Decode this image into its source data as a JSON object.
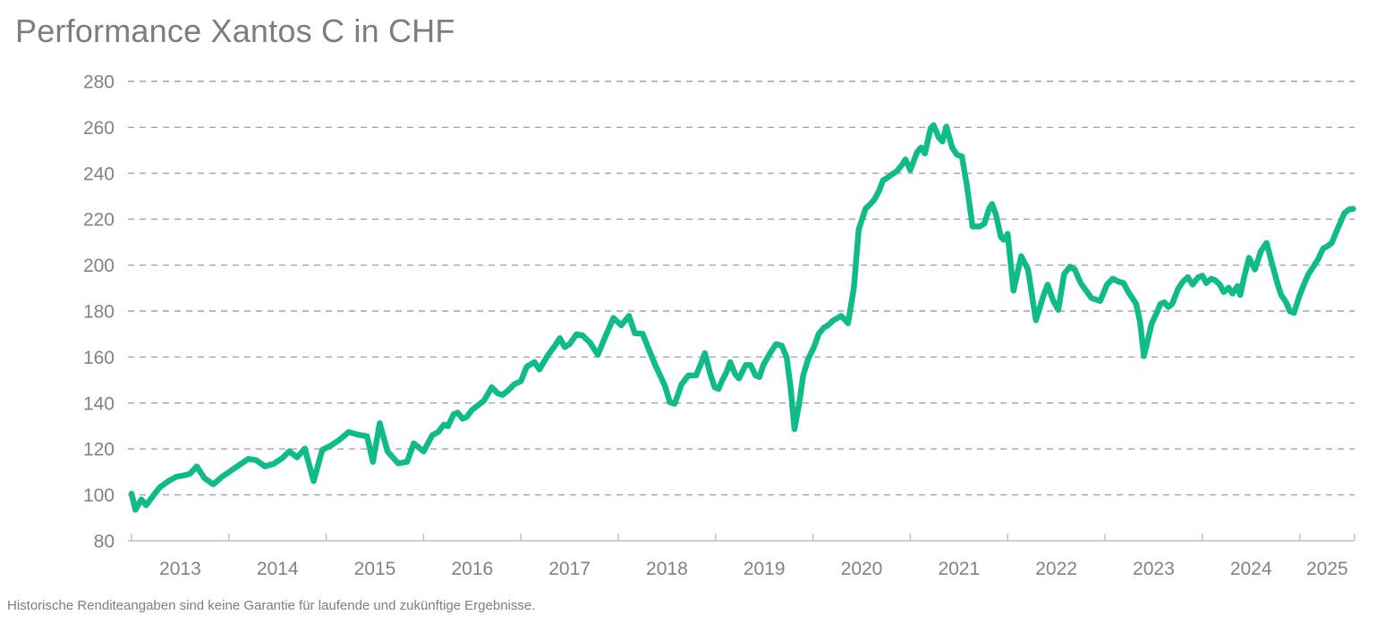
{
  "title": "Performance Xantos C in CHF",
  "footnote": "Historische Renditeangaben sind keine Garantie für laufende und zukünftige Ergebnisse.",
  "colors": {
    "line": "#10bb8a",
    "title_text": "#7d7d7d",
    "axis_text": "#828282",
    "gridline": "#a3a3a3",
    "axis_line": "#c2c2c2",
    "background": "#ffffff"
  },
  "chart_data": {
    "type": "line",
    "title": "Performance Xantos C in CHF",
    "xlabel": "",
    "ylabel": "",
    "ylim": [
      80,
      280
    ],
    "y_ticks": [
      80,
      100,
      120,
      140,
      160,
      180,
      200,
      220,
      240,
      260,
      280
    ],
    "y_tick_labels": [
      "80",
      "100",
      "120",
      "140",
      "160",
      "180",
      "200",
      "220",
      "240",
      "260",
      "280"
    ],
    "x_ticks": [
      2013,
      2014,
      2015,
      2016,
      2017,
      2018,
      2019,
      2020,
      2021,
      2022,
      2023,
      2024,
      2025
    ],
    "x_tick_labels": [
      "2013",
      "2014",
      "2015",
      "2016",
      "2017",
      "2018",
      "2019",
      "2020",
      "2021",
      "2022",
      "2023",
      "2024",
      "2025"
    ],
    "x_range": [
      2013,
      2025.62
    ],
    "grid": "horizontal-dashed",
    "legend_position": "none",
    "series": [
      {
        "name": "Xantos C",
        "color": "#10bb8a",
        "points": [
          [
            2013.0,
            100.5
          ],
          [
            2013.04,
            93.5
          ],
          [
            2013.1,
            98.0
          ],
          [
            2013.15,
            95.5
          ],
          [
            2013.23,
            100.0
          ],
          [
            2013.29,
            103.3
          ],
          [
            2013.38,
            106.0
          ],
          [
            2013.46,
            107.9
          ],
          [
            2013.54,
            108.5
          ],
          [
            2013.6,
            109.2
          ],
          [
            2013.67,
            112.4
          ],
          [
            2013.75,
            107.2
          ],
          [
            2013.84,
            104.6
          ],
          [
            2013.93,
            107.9
          ],
          [
            2014.02,
            110.5
          ],
          [
            2014.11,
            113.1
          ],
          [
            2014.2,
            115.7
          ],
          [
            2014.28,
            115.1
          ],
          [
            2014.37,
            112.4
          ],
          [
            2014.46,
            113.5
          ],
          [
            2014.55,
            116.0
          ],
          [
            2014.62,
            119.0
          ],
          [
            2014.7,
            116.3
          ],
          [
            2014.78,
            120.2
          ],
          [
            2014.87,
            106.0
          ],
          [
            2014.96,
            119.6
          ],
          [
            2015.05,
            121.5
          ],
          [
            2015.14,
            124.1
          ],
          [
            2015.23,
            127.3
          ],
          [
            2015.33,
            126.2
          ],
          [
            2015.42,
            125.5
          ],
          [
            2015.48,
            114.4
          ],
          [
            2015.55,
            131.2
          ],
          [
            2015.63,
            118.9
          ],
          [
            2015.74,
            113.7
          ],
          [
            2015.83,
            114.4
          ],
          [
            2015.9,
            122.4
          ],
          [
            2016.0,
            118.9
          ],
          [
            2016.09,
            126.0
          ],
          [
            2016.15,
            127.3
          ],
          [
            2016.21,
            130.6
          ],
          [
            2016.25,
            129.9
          ],
          [
            2016.31,
            135.1
          ],
          [
            2016.35,
            135.8
          ],
          [
            2016.4,
            133.2
          ],
          [
            2016.44,
            133.8
          ],
          [
            2016.5,
            137.1
          ],
          [
            2016.56,
            139.0
          ],
          [
            2016.62,
            141.0
          ],
          [
            2016.7,
            146.8
          ],
          [
            2016.76,
            144.2
          ],
          [
            2016.81,
            143.5
          ],
          [
            2016.87,
            145.5
          ],
          [
            2016.93,
            148.1
          ],
          [
            2017.0,
            149.5
          ],
          [
            2017.06,
            155.8
          ],
          [
            2017.14,
            157.8
          ],
          [
            2017.19,
            154.6
          ],
          [
            2017.28,
            161.0
          ],
          [
            2017.35,
            165.0
          ],
          [
            2017.4,
            168.2
          ],
          [
            2017.45,
            164.3
          ],
          [
            2017.5,
            165.6
          ],
          [
            2017.57,
            169.9
          ],
          [
            2017.63,
            169.5
          ],
          [
            2017.71,
            166.3
          ],
          [
            2017.79,
            161.0
          ],
          [
            2017.86,
            168.2
          ],
          [
            2017.95,
            177.0
          ],
          [
            2018.03,
            173.8
          ],
          [
            2018.11,
            177.9
          ],
          [
            2018.17,
            170.4
          ],
          [
            2018.25,
            170.1
          ],
          [
            2018.38,
            156.5
          ],
          [
            2018.43,
            152.0
          ],
          [
            2018.48,
            147.4
          ],
          [
            2018.53,
            140.3
          ],
          [
            2018.58,
            139.7
          ],
          [
            2018.65,
            148.1
          ],
          [
            2018.72,
            152.0
          ],
          [
            2018.8,
            152.0
          ],
          [
            2018.85,
            157.2
          ],
          [
            2018.89,
            161.7
          ],
          [
            2018.94,
            153.3
          ],
          [
            2018.99,
            146.8
          ],
          [
            2019.03,
            146.1
          ],
          [
            2019.07,
            150.0
          ],
          [
            2019.11,
            153.3
          ],
          [
            2019.15,
            157.8
          ],
          [
            2019.2,
            152.6
          ],
          [
            2019.24,
            150.7
          ],
          [
            2019.31,
            156.5
          ],
          [
            2019.36,
            156.5
          ],
          [
            2019.41,
            152.0
          ],
          [
            2019.45,
            151.3
          ],
          [
            2019.49,
            156.5
          ],
          [
            2019.56,
            161.7
          ],
          [
            2019.62,
            165.6
          ],
          [
            2019.68,
            165.0
          ],
          [
            2019.73,
            159.8
          ],
          [
            2019.77,
            146.8
          ],
          [
            2019.81,
            128.6
          ],
          [
            2019.86,
            140.3
          ],
          [
            2019.9,
            152.0
          ],
          [
            2019.95,
            159.1
          ],
          [
            2020.01,
            164.3
          ],
          [
            2020.06,
            170.1
          ],
          [
            2020.11,
            172.7
          ],
          [
            2020.16,
            174.0
          ],
          [
            2020.21,
            176.0
          ],
          [
            2020.29,
            177.9
          ],
          [
            2020.36,
            174.7
          ],
          [
            2020.42,
            190.0
          ],
          [
            2020.47,
            215.5
          ],
          [
            2020.54,
            224.6
          ],
          [
            2020.59,
            226.6
          ],
          [
            2020.63,
            228.5
          ],
          [
            2020.68,
            232.4
          ],
          [
            2020.72,
            236.9
          ],
          [
            2020.77,
            238.2
          ],
          [
            2020.81,
            239.5
          ],
          [
            2020.86,
            240.8
          ],
          [
            2020.91,
            243.4
          ],
          [
            2020.95,
            246.0
          ],
          [
            2021.0,
            241.4
          ],
          [
            2021.07,
            249.2
          ],
          [
            2021.11,
            251.2
          ],
          [
            2021.15,
            248.6
          ],
          [
            2021.21,
            259.6
          ],
          [
            2021.24,
            260.9
          ],
          [
            2021.29,
            255.7
          ],
          [
            2021.33,
            253.8
          ],
          [
            2021.37,
            260.3
          ],
          [
            2021.43,
            251.2
          ],
          [
            2021.48,
            248.0
          ],
          [
            2021.53,
            247.3
          ],
          [
            2021.58,
            235.0
          ],
          [
            2021.64,
            216.8
          ],
          [
            2021.71,
            216.8
          ],
          [
            2021.76,
            218.0
          ],
          [
            2021.81,
            224.6
          ],
          [
            2021.84,
            226.6
          ],
          [
            2021.88,
            222.0
          ],
          [
            2021.93,
            212.3
          ],
          [
            2021.96,
            211.0
          ],
          [
            2022.0,
            213.6
          ],
          [
            2022.06,
            188.9
          ],
          [
            2022.14,
            203.9
          ],
          [
            2022.21,
            198.0
          ],
          [
            2022.29,
            176.0
          ],
          [
            2022.37,
            187.0
          ],
          [
            2022.41,
            191.5
          ],
          [
            2022.47,
            184.4
          ],
          [
            2022.52,
            180.5
          ],
          [
            2022.58,
            196.1
          ],
          [
            2022.64,
            199.3
          ],
          [
            2022.69,
            198.1
          ],
          [
            2022.75,
            192.2
          ],
          [
            2022.86,
            185.7
          ],
          [
            2022.95,
            184.4
          ],
          [
            2023.02,
            191.5
          ],
          [
            2023.08,
            194.1
          ],
          [
            2023.14,
            192.8
          ],
          [
            2023.19,
            192.2
          ],
          [
            2023.24,
            188.3
          ],
          [
            2023.28,
            185.7
          ],
          [
            2023.32,
            183.1
          ],
          [
            2023.36,
            175.3
          ],
          [
            2023.4,
            160.4
          ],
          [
            2023.44,
            167.5
          ],
          [
            2023.48,
            174.6
          ],
          [
            2023.53,
            179.2
          ],
          [
            2023.57,
            183.1
          ],
          [
            2023.61,
            183.8
          ],
          [
            2023.65,
            181.8
          ],
          [
            2023.69,
            183.1
          ],
          [
            2023.75,
            189.6
          ],
          [
            2023.8,
            192.8
          ],
          [
            2023.85,
            194.8
          ],
          [
            2023.9,
            191.5
          ],
          [
            2023.96,
            194.8
          ],
          [
            2024.0,
            195.4
          ],
          [
            2024.04,
            192.2
          ],
          [
            2024.09,
            194.1
          ],
          [
            2024.13,
            193.5
          ],
          [
            2024.18,
            191.5
          ],
          [
            2024.22,
            188.3
          ],
          [
            2024.27,
            190.2
          ],
          [
            2024.31,
            187.6
          ],
          [
            2024.36,
            190.9
          ],
          [
            2024.39,
            187.0
          ],
          [
            2024.43,
            195.0
          ],
          [
            2024.48,
            203.2
          ],
          [
            2024.54,
            198.1
          ],
          [
            2024.6,
            206.0
          ],
          [
            2024.66,
            209.7
          ],
          [
            2024.72,
            200.0
          ],
          [
            2024.77,
            192.2
          ],
          [
            2024.81,
            187.0
          ],
          [
            2024.86,
            183.8
          ],
          [
            2024.9,
            179.9
          ],
          [
            2024.94,
            179.2
          ],
          [
            2025.0,
            187.0
          ],
          [
            2025.05,
            192.2
          ],
          [
            2025.09,
            196.1
          ],
          [
            2025.14,
            199.3
          ],
          [
            2025.19,
            202.6
          ],
          [
            2025.24,
            207.2
          ],
          [
            2025.29,
            208.4
          ],
          [
            2025.33,
            209.7
          ],
          [
            2025.38,
            214.9
          ],
          [
            2025.42,
            218.8
          ],
          [
            2025.46,
            222.7
          ],
          [
            2025.51,
            224.3
          ],
          [
            2025.55,
            224.5
          ]
        ]
      }
    ]
  }
}
